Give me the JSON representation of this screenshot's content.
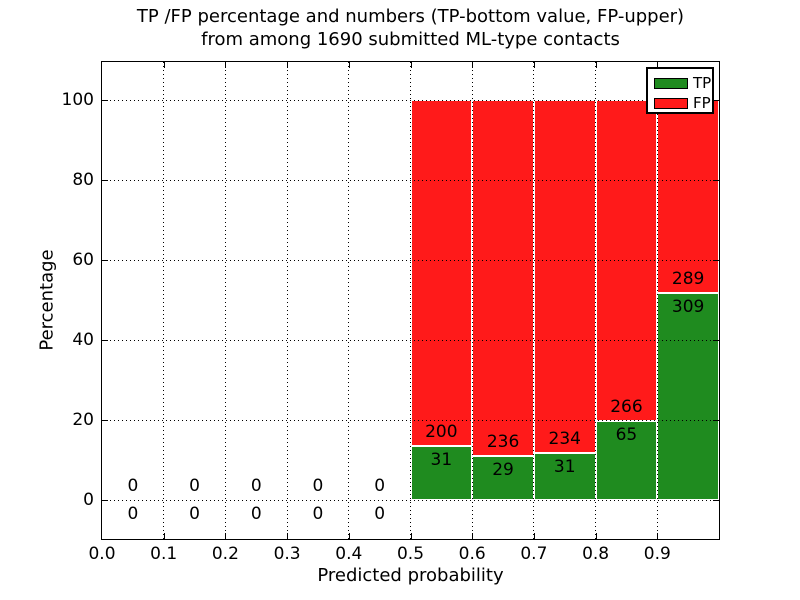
{
  "title": {
    "line1": "TP /FP percentage and numbers (TP-bottom value, FP-upper)",
    "line2": "from among 1690 submitted ML-type contacts"
  },
  "axes": {
    "xlabel": "Predicted probability",
    "ylabel": "Percentage",
    "x_tick_labels": [
      "0.0",
      "0.1",
      "0.2",
      "0.3",
      "0.4",
      "0.5",
      "0.6",
      "0.7",
      "0.8",
      "0.9"
    ],
    "y_tick_labels": [
      "0",
      "20",
      "40",
      "60",
      "80",
      "100"
    ]
  },
  "legend": {
    "items": [
      {
        "label": "TP",
        "color": "#1f8b1f"
      },
      {
        "label": "FP",
        "color": "#ff1a1a"
      }
    ]
  },
  "chart_data": {
    "type": "bar",
    "stacked": true,
    "normalized_to_percent": true,
    "title": "TP /FP percentage and numbers (TP-bottom value, FP-upper) from among 1690 submitted ML-type contacts",
    "xlabel": "Predicted probability",
    "ylabel": "Percentage",
    "total_contacts": 1690,
    "bin_edges": [
      0.0,
      0.1,
      0.2,
      0.3,
      0.4,
      0.5,
      0.6,
      0.7,
      0.8,
      0.9,
      1.0
    ],
    "series": [
      {
        "name": "TP",
        "color": "#1f8b1f",
        "counts": [
          0,
          0,
          0,
          0,
          0,
          31,
          29,
          31,
          65,
          309
        ]
      },
      {
        "name": "FP",
        "color": "#ff1a1a",
        "counts": [
          0,
          0,
          0,
          0,
          0,
          200,
          236,
          234,
          266,
          289
        ]
      }
    ],
    "tp_percent_of_bin": [
      0,
      0,
      0,
      0,
      0,
      13.4,
      10.9,
      11.7,
      19.6,
      51.7
    ],
    "fp_percent_of_bin": [
      0,
      0,
      0,
      0,
      0,
      86.6,
      89.1,
      88.3,
      80.4,
      48.3
    ],
    "xlim": [
      0.0,
      1.0
    ],
    "ylim": [
      -10,
      110
    ],
    "grid": true,
    "grid_style": "dotted",
    "legend_position": "upper right"
  }
}
